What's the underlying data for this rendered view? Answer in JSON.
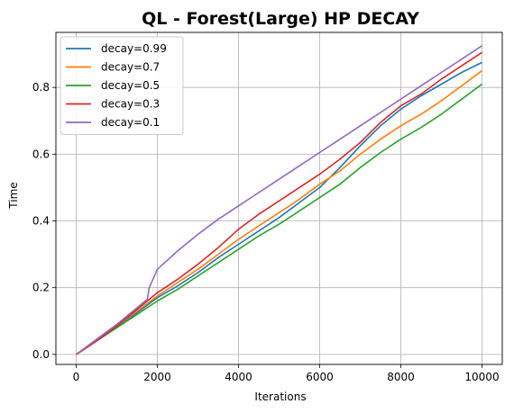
{
  "chart_data": {
    "type": "line",
    "title": "QL - Forest(Large) HP DECAY",
    "xlabel": "Iterations",
    "ylabel": "Time",
    "xlim": [
      -500,
      10500
    ],
    "ylim": [
      -0.03,
      0.965
    ],
    "xticks": [
      0,
      2000,
      4000,
      6000,
      8000,
      10000
    ],
    "yticks": [
      0.0,
      0.2,
      0.4,
      0.6,
      0.8
    ],
    "xtick_labels": [
      "0",
      "2000",
      "4000",
      "6000",
      "8000",
      "10000"
    ],
    "ytick_labels": [
      "0.0",
      "0.2",
      "0.4",
      "0.6",
      "0.8"
    ],
    "grid": true,
    "legend_position": "top-left",
    "series": [
      {
        "name": "decay=0.99",
        "color": "#1f77b4",
        "x": [
          0,
          500,
          1000,
          1500,
          2000,
          2500,
          3000,
          3500,
          4000,
          4500,
          5000,
          5500,
          6000,
          6500,
          7000,
          7500,
          8000,
          8500,
          9000,
          9500,
          10000
        ],
        "y": [
          0.0,
          0.04,
          0.08,
          0.125,
          0.17,
          0.205,
          0.245,
          0.29,
          0.33,
          0.37,
          0.41,
          0.455,
          0.5,
          0.56,
          0.625,
          0.685,
          0.735,
          0.775,
          0.81,
          0.845,
          0.875
        ]
      },
      {
        "name": "decay=0.7",
        "color": "#ff7f0e",
        "x": [
          0,
          500,
          1000,
          1500,
          2000,
          2500,
          3000,
          3500,
          4000,
          4500,
          5000,
          5500,
          6000,
          6500,
          7000,
          7500,
          8000,
          8500,
          9000,
          9500,
          10000
        ],
        "y": [
          0.0,
          0.04,
          0.085,
          0.13,
          0.175,
          0.215,
          0.255,
          0.3,
          0.345,
          0.385,
          0.425,
          0.465,
          0.51,
          0.55,
          0.6,
          0.645,
          0.685,
          0.72,
          0.76,
          0.805,
          0.85
        ]
      },
      {
        "name": "decay=0.5",
        "color": "#2ca02c",
        "x": [
          0,
          500,
          1000,
          1500,
          2000,
          2500,
          3000,
          3500,
          4000,
          4500,
          5000,
          5500,
          6000,
          6500,
          7000,
          7500,
          8000,
          8500,
          9000,
          9500,
          10000
        ],
        "y": [
          0.0,
          0.04,
          0.08,
          0.12,
          0.16,
          0.195,
          0.235,
          0.275,
          0.315,
          0.355,
          0.39,
          0.43,
          0.47,
          0.51,
          0.56,
          0.605,
          0.645,
          0.68,
          0.72,
          0.765,
          0.81
        ]
      },
      {
        "name": "decay=0.3",
        "color": "#d62728",
        "x": [
          0,
          500,
          1000,
          1500,
          2000,
          2500,
          3000,
          3500,
          4000,
          4500,
          5000,
          5500,
          6000,
          6500,
          7000,
          7500,
          8000,
          8500,
          9000,
          9500,
          10000
        ],
        "y": [
          0.0,
          0.04,
          0.085,
          0.135,
          0.185,
          0.225,
          0.27,
          0.32,
          0.375,
          0.42,
          0.46,
          0.5,
          0.54,
          0.585,
          0.635,
          0.695,
          0.745,
          0.78,
          0.825,
          0.865,
          0.905
        ]
      },
      {
        "name": "decay=0.1",
        "color": "#9467bd",
        "x": [
          0,
          500,
          1000,
          1500,
          1750,
          1800,
          2000,
          2500,
          3000,
          3500,
          4000,
          4500,
          5000,
          5500,
          6000,
          6500,
          7000,
          7500,
          8000,
          8500,
          9000,
          9500,
          10000
        ],
        "y": [
          0.0,
          0.045,
          0.09,
          0.14,
          0.165,
          0.2,
          0.255,
          0.31,
          0.36,
          0.405,
          0.445,
          0.485,
          0.525,
          0.565,
          0.605,
          0.645,
          0.685,
          0.725,
          0.765,
          0.805,
          0.845,
          0.885,
          0.925
        ]
      }
    ]
  }
}
